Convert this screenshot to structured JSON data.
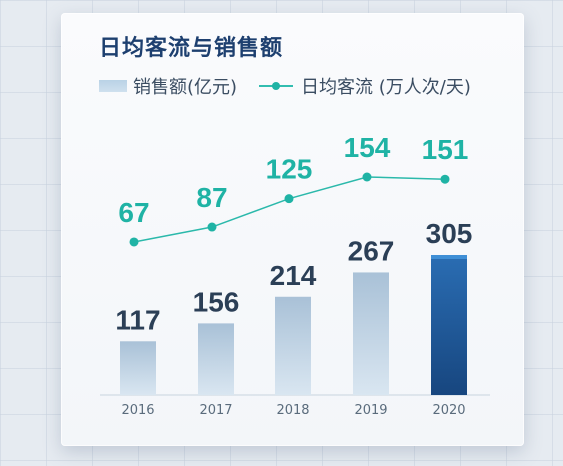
{
  "chart_data": {
    "type": "bar",
    "title": "日均客流与销售额",
    "categories": [
      "2016",
      "2017",
      "2018",
      "2019",
      "2020"
    ],
    "series": [
      {
        "name": "销售额(亿元)",
        "type": "bar",
        "values": [
          117,
          156,
          214,
          267,
          305
        ],
        "color": "#b4cade",
        "highlight_color": "#1f5a9c"
      },
      {
        "name": "日均客流 (万人次/天)",
        "type": "line",
        "values": [
          67,
          87,
          125,
          154,
          151
        ],
        "color": "#2bb9ab"
      }
    ],
    "value_label_colors": {
      "bar": "#2b3f56",
      "line": "#1fb3a5"
    },
    "legend_position": "top-left",
    "grid": false
  }
}
